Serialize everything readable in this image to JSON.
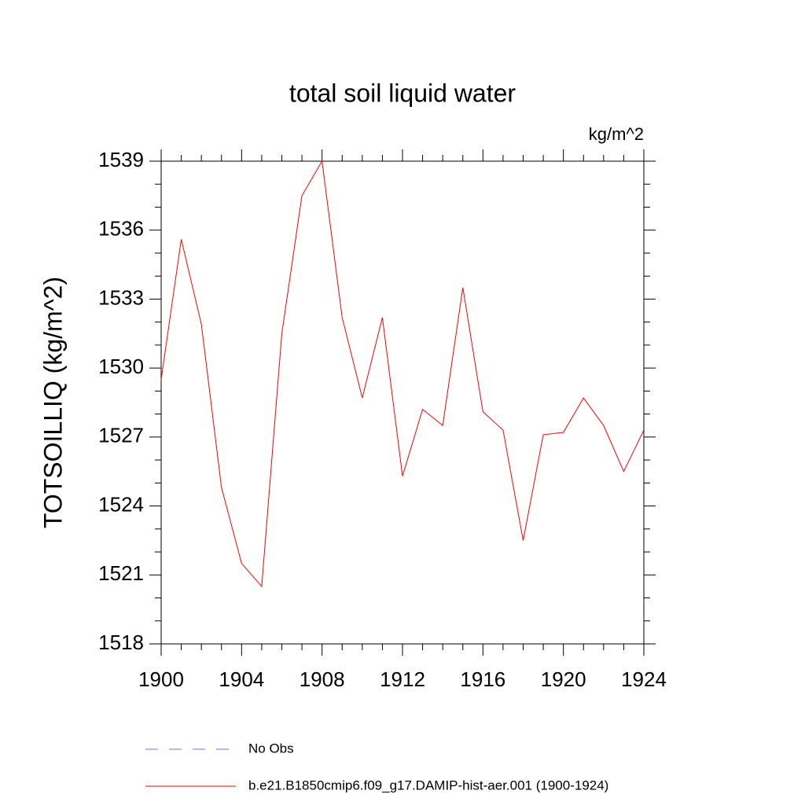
{
  "chart_data": {
    "type": "line",
    "title": "total soil liquid water",
    "units": "kg/m^2",
    "y_label": "TOTSOILLIQ  (kg/m^2)",
    "x": [
      1900,
      1901,
      1902,
      1903,
      1904,
      1905,
      1906,
      1907,
      1908,
      1909,
      1910,
      1911,
      1912,
      1913,
      1914,
      1915,
      1916,
      1917,
      1918,
      1919,
      1920,
      1921,
      1922,
      1923,
      1924
    ],
    "series": [
      {
        "name": "b.e21.B1850cmip6.f09_g17.DAMIP-hist-aer.001 (1900-1924)",
        "color": "#ff0000",
        "values": [
          1529.5,
          1535.6,
          1531.9,
          1524.8,
          1521.5,
          1520.5,
          1531.5,
          1537.5,
          1539.0,
          1532.2,
          1528.7,
          1532.2,
          1525.3,
          1528.2,
          1527.5,
          1533.5,
          1528.1,
          1527.3,
          1522.5,
          1527.1,
          1527.2,
          1528.7,
          1527.5,
          1525.5,
          1527.3
        ]
      }
    ],
    "reference_legend": {
      "name": "No Obs",
      "color": "#7070c8",
      "linestyle": "dashed"
    },
    "xlim": [
      1900,
      1924
    ],
    "xticks": [
      1900,
      1904,
      1908,
      1912,
      1916,
      1920,
      1924
    ],
    "ylim": [
      1518,
      1539
    ],
    "yticks": [
      1518,
      1521,
      1524,
      1527,
      1530,
      1533,
      1536,
      1539
    ]
  }
}
